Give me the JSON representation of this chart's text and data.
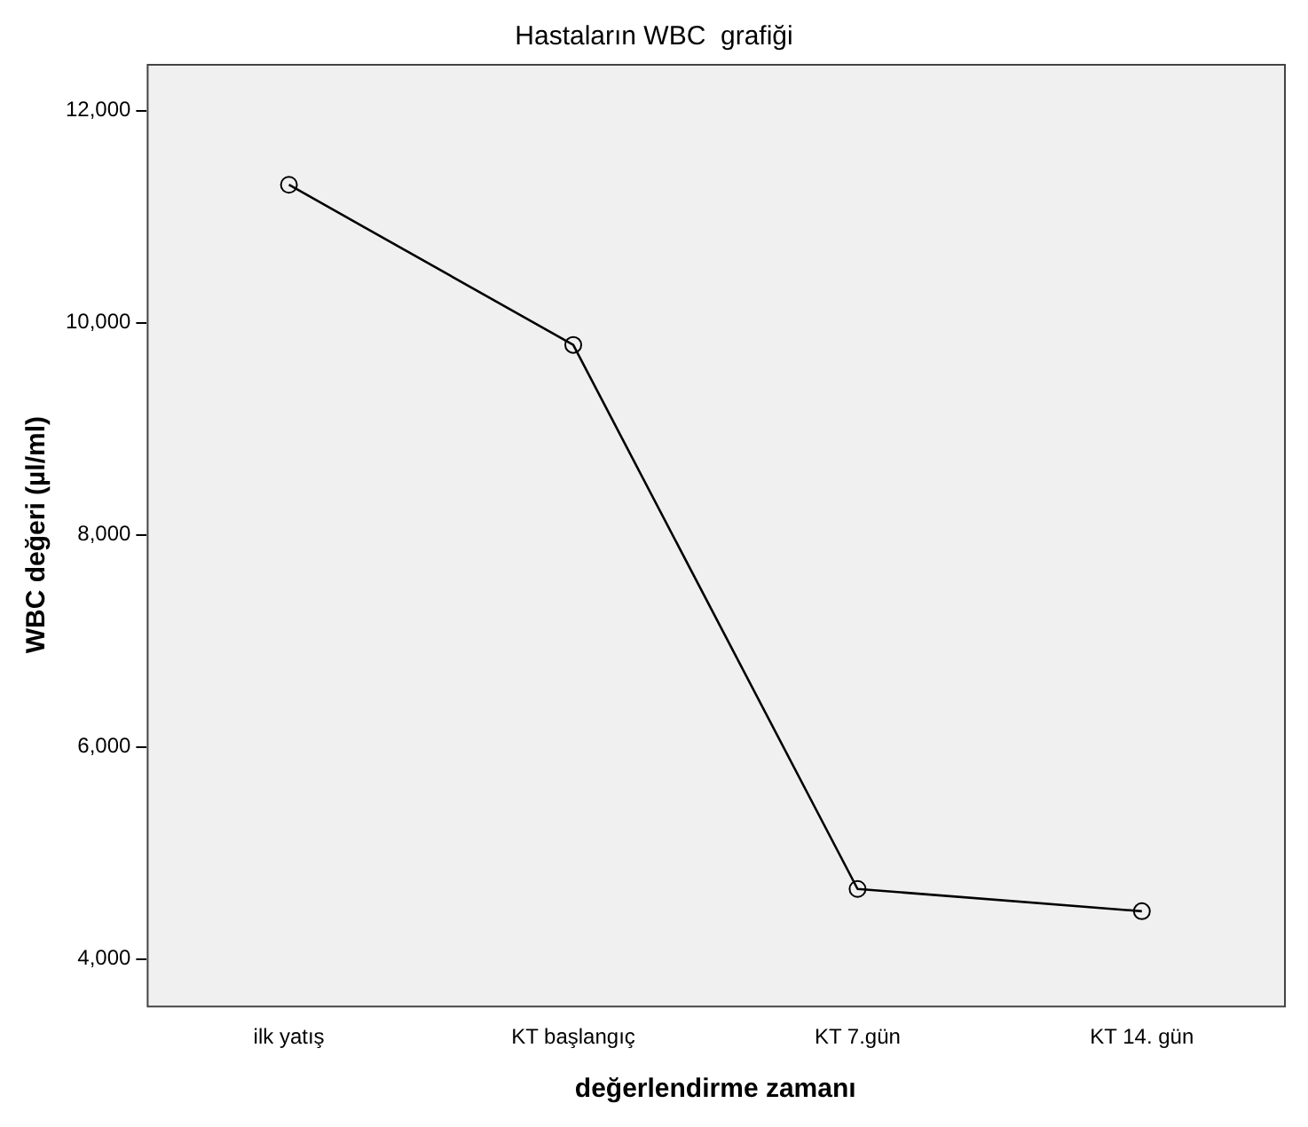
{
  "chart_data": {
    "type": "line",
    "title": "Hastaların WBC  grafiği",
    "xlabel": "değerlendirme zamanı",
    "ylabel": "WBC değeri (µl/ml)",
    "categories": [
      "ilk yatış",
      "KT başlangıç",
      "KT 7.gün",
      "KT 14. gün"
    ],
    "series": [
      {
        "color": "#000000",
        "values": [
          11300,
          9790,
          4660,
          4450
        ]
      }
    ],
    "ylim": [
      3560,
      12440
    ],
    "yticks": [
      {
        "value": 4000,
        "label": "4,000"
      },
      {
        "value": 6000,
        "label": "6,000"
      },
      {
        "value": 8000,
        "label": "8,000"
      },
      {
        "value": 10000,
        "label": "10,000"
      },
      {
        "value": 12000,
        "label": "12,000"
      }
    ],
    "grid": false,
    "legend": false,
    "marker": "circle",
    "line_style": "solid"
  }
}
